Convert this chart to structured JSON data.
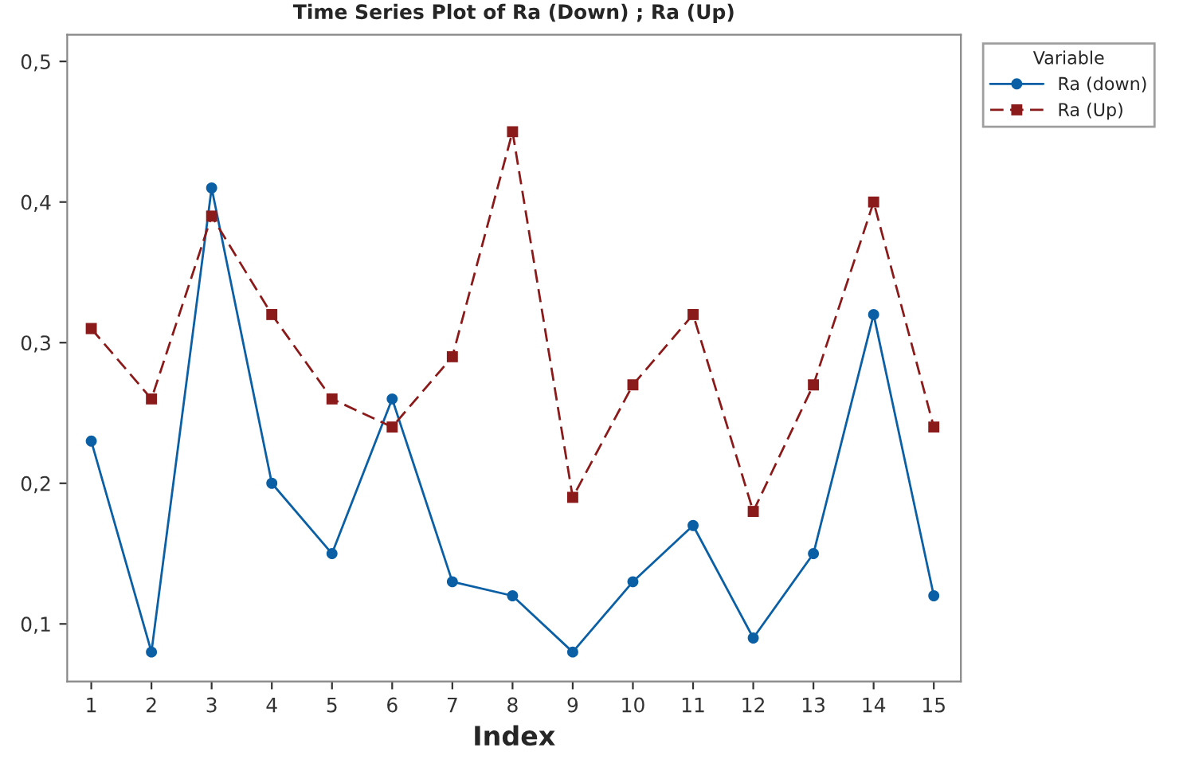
{
  "chart_data": {
    "type": "line",
    "title": "Time Series Plot of Ra (Down) ; Ra (Up)",
    "xlabel": "Index",
    "legend_title": "Variable",
    "legend": "top right",
    "grid": false,
    "x": [
      1,
      2,
      3,
      4,
      5,
      6,
      7,
      8,
      9,
      10,
      11,
      12,
      13,
      14,
      15
    ],
    "xlim": [
      0.6,
      15.45
    ],
    "xticks": [
      1,
      2,
      3,
      4,
      5,
      6,
      7,
      8,
      9,
      10,
      11,
      12,
      13,
      14,
      15
    ],
    "ylim": [
      0.059,
      0.519
    ],
    "yticks": [
      {
        "value": 0.1,
        "label": "0,1"
      },
      {
        "value": 0.2,
        "label": "0,2"
      },
      {
        "value": 0.3,
        "label": "0,3"
      },
      {
        "value": 0.4,
        "label": "0,4"
      },
      {
        "value": 0.5,
        "label": "0,5"
      }
    ],
    "series": [
      {
        "name": "Ra (down)",
        "color": "#0b5fa5",
        "marker": "circle",
        "line_style": "solid",
        "values": [
          0.23,
          0.08,
          0.41,
          0.2,
          0.15,
          0.26,
          0.13,
          0.12,
          0.08,
          0.13,
          0.17,
          0.09,
          0.15,
          0.32,
          0.12
        ]
      },
      {
        "name": "Ra (Up)",
        "color": "#8b1a1a",
        "marker": "square",
        "line_style": "dashed",
        "values": [
          0.31,
          0.26,
          0.39,
          0.32,
          0.26,
          0.24,
          0.29,
          0.45,
          0.19,
          0.27,
          0.32,
          0.18,
          0.27,
          0.4,
          0.24
        ]
      }
    ]
  }
}
